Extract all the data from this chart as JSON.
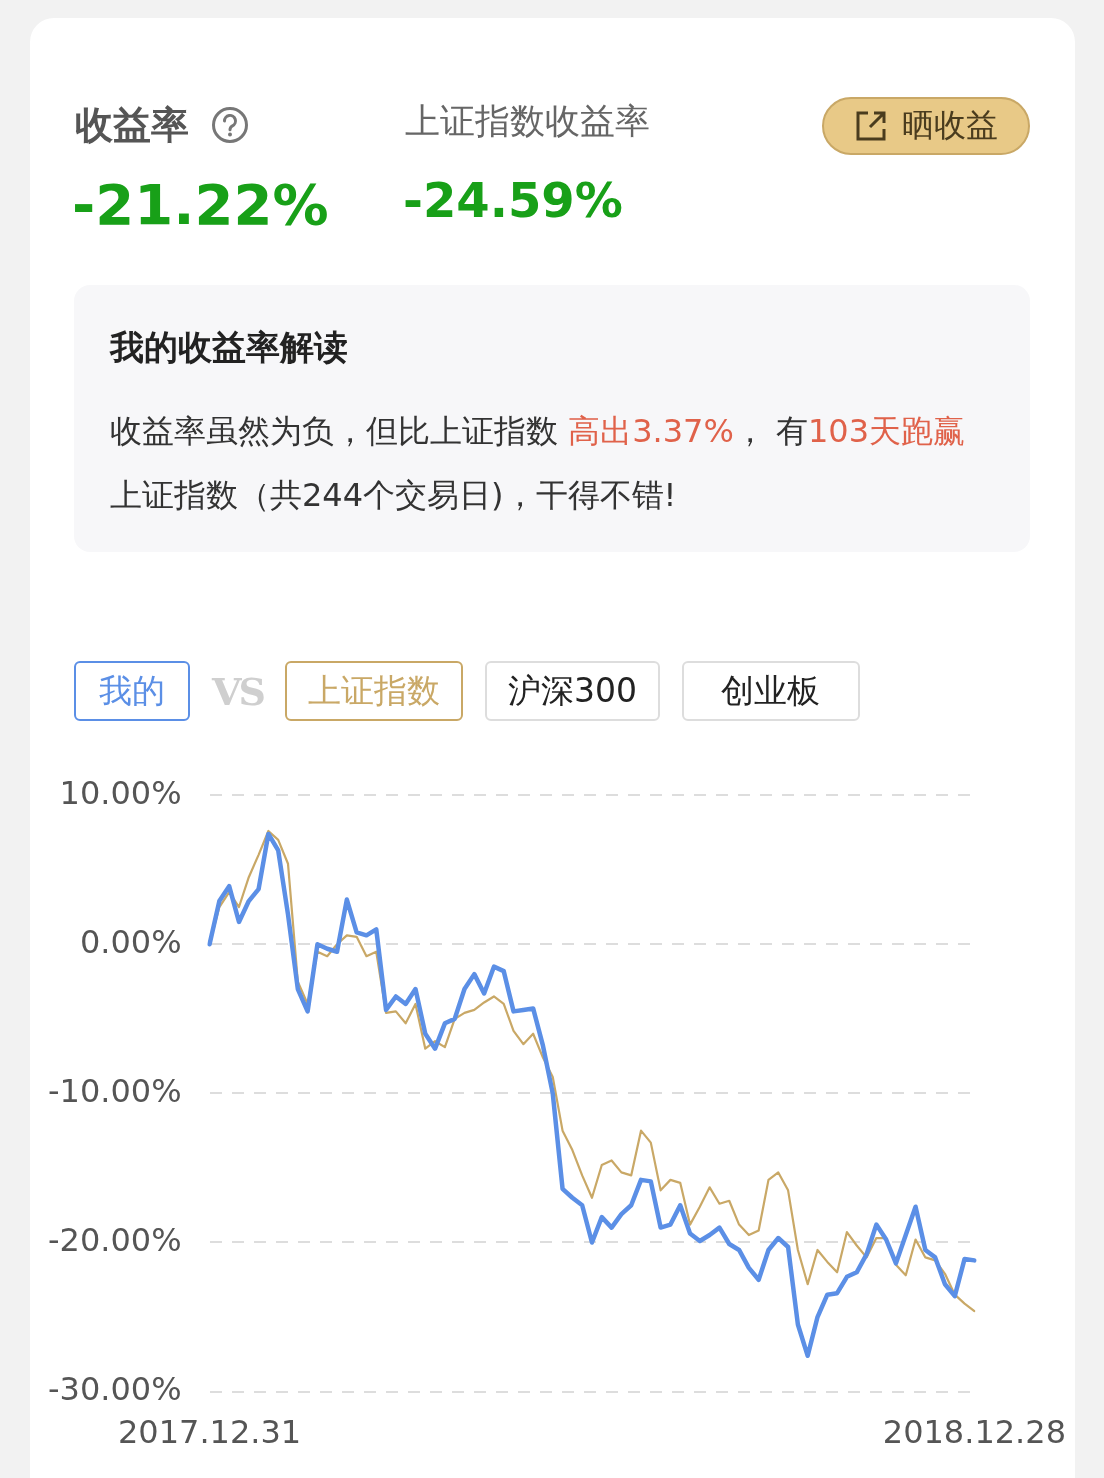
{
  "chart_data": {
    "type": "line",
    "title": "收益率",
    "annotations": [
      "上证指数收益率",
      "-21.22%",
      "-24.59%",
      "晒收益",
      "我的收益率解读",
      "收益率虽然为负，但比上证指数 ",
      "高出3.37%",
      "， 有",
      "103天跑赢",
      "上证指数（共244个交易日)，干得不错!",
      "VS",
      "沪深300",
      "创业板"
    ],
    "categories": [
      "2017.12.31",
      null,
      null,
      null,
      null,
      null,
      null,
      null,
      null,
      null,
      null,
      null,
      null,
      null,
      null,
      null,
      null,
      null,
      null,
      null,
      null,
      null,
      null,
      null,
      null,
      null,
      null,
      null,
      null,
      null,
      null,
      null,
      null,
      null,
      null,
      null,
      null,
      null,
      null,
      null,
      null,
      null,
      null,
      null,
      null,
      null,
      null,
      null,
      null,
      null,
      null,
      null,
      null,
      null,
      null,
      null,
      null,
      null,
      null,
      null,
      null,
      null,
      null,
      null,
      null,
      null,
      null,
      null,
      null,
      null,
      null,
      null,
      null,
      null,
      null,
      null,
      null,
      null,
      "2018.12.28"
    ],
    "series": [
      {
        "name": "我的",
        "color": "#5b8fe6",
        "values": [
          0,
          2.9,
          3.9,
          1.5,
          2.9,
          3.7,
          7.4,
          6.3,
          2.0,
          -3.0,
          -4.5,
          0.0,
          -0.3,
          -0.5,
          3.0,
          0.8,
          0.6,
          1.0,
          -4.4,
          -3.5,
          -4.0,
          -3.0,
          -6.0,
          -7.0,
          -5.3,
          -5.0,
          -3.0,
          -2.0,
          -3.3,
          -1.5,
          -1.8,
          -4.5,
          -4.4,
          -4.3,
          -6.8,
          -10.0,
          -16.4,
          -17.0,
          -17.5,
          -20.0,
          -18.3,
          -19.0,
          -18.1,
          -17.5,
          -15.8,
          -15.9,
          -19.0,
          -18.8,
          -17.5,
          -19.4,
          -19.9,
          -19.5,
          -19.0,
          -20.1,
          -20.5,
          -21.7,
          -22.5,
          -20.5,
          -19.7,
          -20.3,
          -25.5,
          -27.6,
          -25.0,
          -23.5,
          -23.4,
          -22.3,
          -22.0,
          -20.8,
          -18.8,
          -19.8,
          -21.4,
          -19.5,
          -17.6,
          -20.5,
          -21.0,
          -22.8,
          -23.6,
          -21.1,
          -21.2
        ]
      },
      {
        "name": "上证指数",
        "color": "#c9a866",
        "values": [
          0,
          2.5,
          3.5,
          2.5,
          4.5,
          6.0,
          7.6,
          7.0,
          5.4,
          -2.5,
          -4.0,
          -0.5,
          -0.8,
          0.0,
          0.6,
          0.5,
          -0.8,
          -0.5,
          -4.6,
          -4.5,
          -5.3,
          -4.0,
          -7.0,
          -6.5,
          -6.9,
          -5.0,
          -4.6,
          -4.4,
          -3.9,
          -3.5,
          -4.0,
          -5.8,
          -6.7,
          -6.0,
          -7.6,
          -8.9,
          -12.5,
          -13.8,
          -15.5,
          -17.0,
          -14.8,
          -14.5,
          -15.3,
          -15.5,
          -12.5,
          -13.3,
          -16.5,
          -15.8,
          -16.0,
          -18.8,
          -17.6,
          -16.3,
          -17.4,
          -17.2,
          -18.8,
          -19.5,
          -19.2,
          -15.8,
          -15.3,
          -16.5,
          -20.5,
          -22.8,
          -20.5,
          -21.3,
          -22.0,
          -19.3,
          -20.2,
          -21.0,
          -19.7,
          -19.7,
          -21.5,
          -22.2,
          -19.8,
          -21.0,
          -21.2,
          -22.1,
          -23.5,
          -24.1,
          -24.6
        ]
      }
    ],
    "ylim": [
      -30,
      10
    ],
    "yticks": [
      {
        "value": -30,
        "label": "-30.00%"
      },
      {
        "value": -20,
        "label": "-20.00%"
      },
      {
        "value": -10,
        "label": "-10.00%"
      },
      {
        "value": 0,
        "label": "0.00%"
      },
      {
        "value": 10,
        "label": "10.00%"
      }
    ],
    "grid": "y",
    "legend": "top left",
    "marker": "none",
    "line_style": "solid"
  }
}
